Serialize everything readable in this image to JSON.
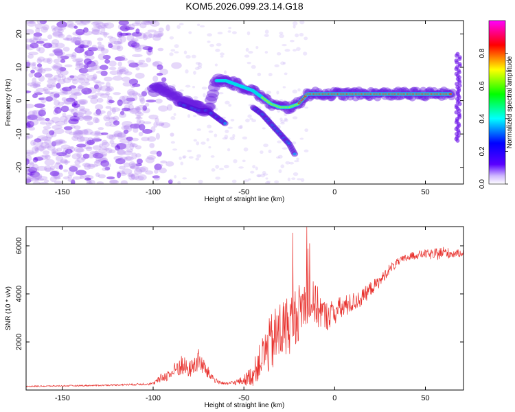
{
  "title": "KOM5.2026.099.23.14.G18",
  "colors": {
    "snr_line": "#e8302c",
    "track_core": "#e8401c"
  },
  "chart_data": [
    {
      "type": "heatmap",
      "xlabel": "Height of straight line (km)",
      "ylabel": "Frequency (Hz)",
      "xlim": [
        -170,
        71
      ],
      "ylim": [
        -25,
        24
      ],
      "xticks": [
        "-150",
        "-100",
        "-50",
        "0",
        "50"
      ],
      "xtick_values": [
        -150,
        -100,
        -50,
        0,
        50
      ],
      "yticks": [
        "-20",
        "-10",
        "0",
        "10",
        "20"
      ],
      "ytick_values": [
        -20,
        -10,
        0,
        10,
        20
      ],
      "colorbar": {
        "label": "Normalized spectral amplitude",
        "range": [
          0,
          1
        ],
        "ticks": [
          "0.0",
          "0.2",
          "0.4",
          "0.6",
          "0.8"
        ],
        "tick_values": [
          0.0,
          0.2,
          0.4,
          0.6,
          0.8
        ],
        "colormap": [
          "#ffffff",
          "#5a00ff",
          "#0000ff",
          "#00ffff",
          "#00ff00",
          "#ffff00",
          "#ff0000",
          "#ff00ff"
        ]
      },
      "main_track": {
        "x": [
          -100,
          -95,
          -90,
          -85,
          -80,
          -75,
          -70,
          -65,
          -60,
          -55,
          -50,
          -45,
          -40,
          -35,
          -30,
          -25,
          -20,
          -15,
          -10,
          -5,
          0,
          5,
          10,
          20,
          30,
          40,
          50,
          60,
          65
        ],
        "y": [
          3,
          4,
          2,
          0,
          -1,
          -2,
          -3,
          6,
          6,
          5,
          4,
          3,
          1,
          -1,
          -2,
          -2,
          -1,
          2,
          2,
          2,
          2,
          2,
          2,
          2,
          2,
          2,
          2,
          2,
          2
        ]
      },
      "lower_branch": {
        "x": [
          -85,
          -80,
          -75,
          -70,
          -65,
          -60,
          -45,
          -40,
          -35,
          -30,
          -25,
          -22
        ],
        "y": [
          -1,
          -2,
          -3,
          -3,
          -5,
          -7,
          -2,
          -4,
          -7,
          -10,
          -13,
          -16
        ]
      },
      "edge_spike": {
        "x": 68,
        "y_min": -12,
        "y_max": 14
      }
    },
    {
      "type": "line",
      "xlabel": "Height of straight line (km)",
      "ylabel": "SNR (10 * v/v)",
      "xlim": [
        -170,
        71
      ],
      "ylim": [
        0,
        6800
      ],
      "xticks": [
        "-150",
        "-100",
        "-50",
        "0",
        "50"
      ],
      "xtick_values": [
        -150,
        -100,
        -50,
        0,
        50
      ],
      "yticks": [
        "2000",
        "4000",
        "6000"
      ],
      "ytick_values": [
        2000,
        4000,
        6000
      ],
      "series": [
        {
          "name": "SNR",
          "x": [
            -170,
            -150,
            -130,
            -110,
            -100,
            -95,
            -90,
            -85,
            -80,
            -75,
            -70,
            -65,
            -60,
            -55,
            -50,
            -45,
            -40,
            -35,
            -30,
            -25,
            -20,
            -15,
            -10,
            -5,
            0,
            5,
            10,
            15,
            20,
            25,
            30,
            35,
            40,
            45,
            50,
            55,
            60,
            65,
            71
          ],
          "y": [
            150,
            170,
            190,
            230,
            260,
            500,
            650,
            1000,
            800,
            1200,
            700,
            350,
            250,
            300,
            380,
            600,
            1300,
            1800,
            2300,
            2600,
            3100,
            3700,
            3400,
            3000,
            3200,
            3400,
            3600,
            3800,
            4200,
            4500,
            5000,
            5300,
            5500,
            5600,
            5650,
            5600,
            5700,
            5650,
            5700
          ],
          "noise": [
            40,
            40,
            40,
            60,
            80,
            300,
            350,
            700,
            500,
            700,
            400,
            150,
            80,
            150,
            300,
            700,
            1200,
            1800,
            2000,
            1800,
            1700,
            1500,
            1300,
            900,
            800,
            700,
            600,
            500,
            450,
            350,
            300,
            250,
            250,
            250,
            250,
            350,
            400,
            250,
            200
          ]
        }
      ]
    }
  ]
}
